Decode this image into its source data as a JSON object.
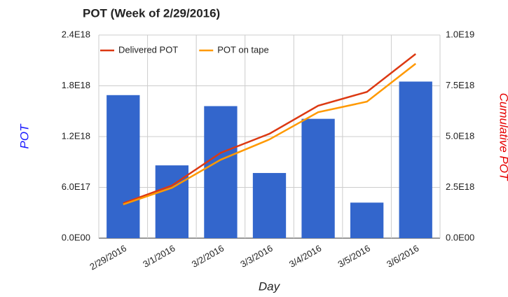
{
  "chart_data": {
    "type": "bar_line",
    "title": "POT (Week of 2/29/2016)",
    "x_label": "Day",
    "y_label": "POT",
    "y2_label": "Cumulative POT",
    "categories": [
      "2/29/2016",
      "3/1/2016",
      "3/2/2016",
      "3/3/2016",
      "3/4/2016",
      "3/5/2016",
      "3/6/2016"
    ],
    "series": [
      {
        "type": "bar",
        "color": "#3366cc",
        "values": [
          1.69e+18,
          8.6e+17,
          1.56e+18,
          7.7e+17,
          1.41e+18,
          4.2e+17,
          1.85e+18
        ]
      },
      {
        "type": "line",
        "name": "Delivered POT",
        "color": "#dc3912",
        "axis": "y2",
        "values": [
          1.72e+18,
          2.59e+18,
          4.2e+18,
          5.14e+18,
          6.52e+18,
          7.2e+18,
          9.07e+18
        ]
      },
      {
        "type": "line",
        "name": "POT on tape",
        "color": "#ff9900",
        "axis": "y2",
        "values": [
          1.66e+18,
          2.48e+18,
          3.86e+18,
          4.86e+18,
          6.2e+18,
          6.72e+18,
          8.59e+18
        ]
      }
    ],
    "ylim": [
      0,
      2.4e+18
    ],
    "yticks": [
      {
        "value": 0,
        "label": "0.0E00"
      },
      {
        "value": 6e+17,
        "label": "6.0E17"
      },
      {
        "value": 1.2e+18,
        "label": "1.2E18"
      },
      {
        "value": 1.8e+18,
        "label": "1.8E18"
      },
      {
        "value": 2.4e+18,
        "label": "2.4E18"
      }
    ],
    "y2lim": [
      0,
      1e+19
    ],
    "y2ticks": [
      {
        "value": 0,
        "label": "0.0E00"
      },
      {
        "value": 2.5e+18,
        "label": "2.5E18"
      },
      {
        "value": 5e+18,
        "label": "5.0E18"
      },
      {
        "value": 7.5e+18,
        "label": "7.5E18"
      },
      {
        "value": 1e+19,
        "label": "1.0E19"
      }
    ],
    "grid": true,
    "legend": "top-left"
  }
}
